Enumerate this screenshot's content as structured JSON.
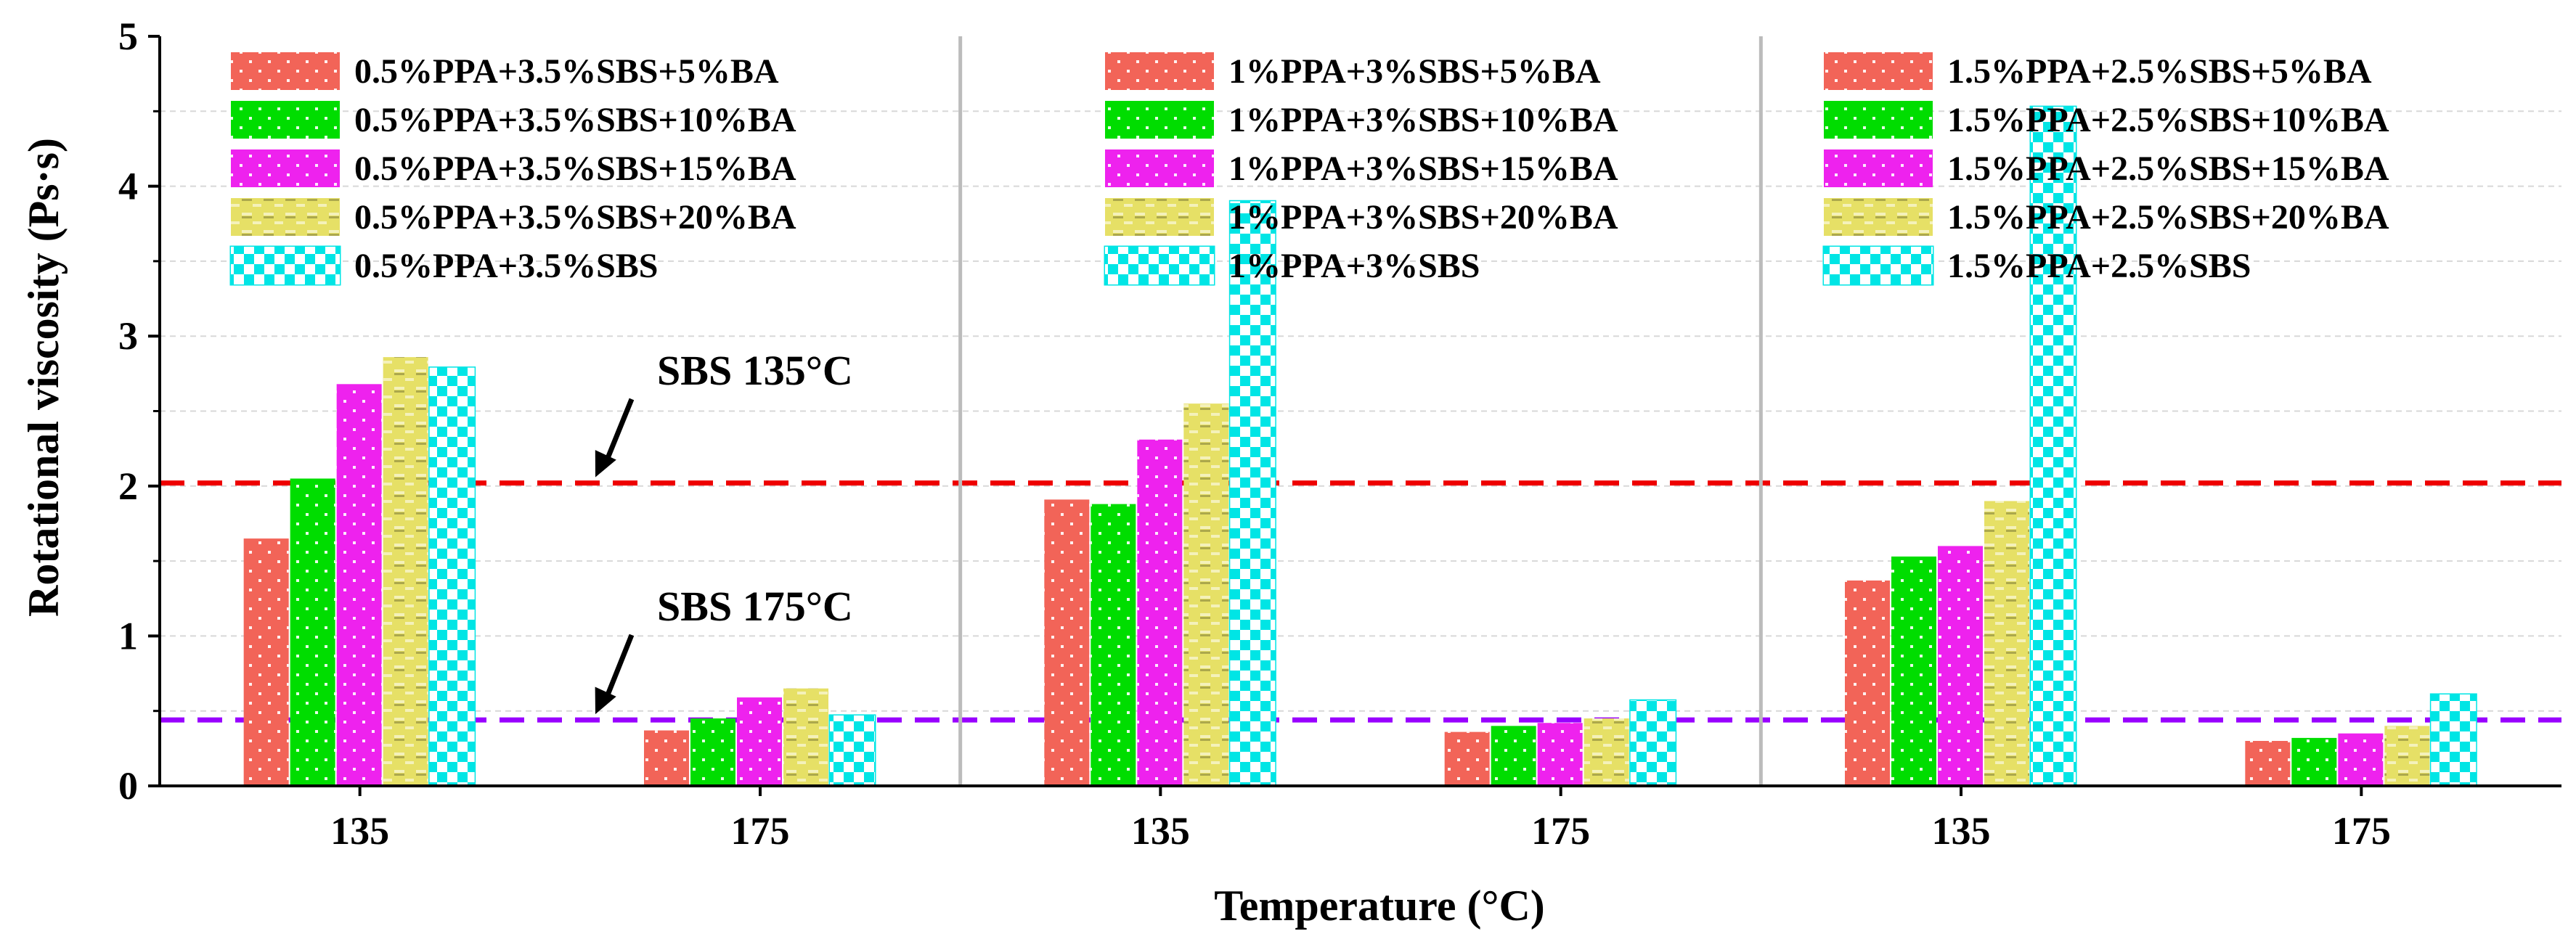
{
  "chart_data": {
    "type": "bar",
    "title": "",
    "xlabel": "Temperature (°C)",
    "ylabel": "Rotational viscosity (Ps·s)",
    "ylim": [
      0,
      5
    ],
    "yticks": [
      "0",
      "1",
      "2",
      "3",
      "4",
      "5"
    ],
    "grid": true,
    "panels": [
      {
        "categories": [
          "135",
          "175"
        ],
        "series": [
          {
            "name": "0.5%PPA+3.5%SBS+5%BA",
            "color": "#f26458",
            "pattern": "dots",
            "values": [
              1.65,
              0.37
            ]
          },
          {
            "name": "0.5%PPA+3.5%SBS+10%BA",
            "color": "#00dd00",
            "pattern": "dots",
            "values": [
              2.05,
              0.45
            ]
          },
          {
            "name": "0.5%PPA+3.5%SBS+15%BA",
            "color": "#ee22ee",
            "pattern": "dots",
            "values": [
              2.68,
              0.59
            ]
          },
          {
            "name": "0.5%PPA+3.5%SBS+20%BA",
            "color": "#e6e066",
            "pattern": "dashes",
            "values": [
              2.86,
              0.65
            ]
          },
          {
            "name": "0.5%PPA+3.5%SBS",
            "color": "#00e5e5",
            "pattern": "checker",
            "values": [
              2.79,
              0.47
            ]
          }
        ]
      },
      {
        "categories": [
          "135",
          "175"
        ],
        "series": [
          {
            "name": "1%PPA+3%SBS+5%BA",
            "color": "#f26458",
            "pattern": "dots",
            "values": [
              1.91,
              0.36
            ]
          },
          {
            "name": "1%PPA+3%SBS+10%BA",
            "color": "#00dd00",
            "pattern": "dots",
            "values": [
              1.88,
              0.4
            ]
          },
          {
            "name": "1%PPA+3%SBS+15%BA",
            "color": "#ee22ee",
            "pattern": "dots",
            "values": [
              2.31,
              0.42
            ]
          },
          {
            "name": "1%PPA+3%SBS+20%BA",
            "color": "#e6e066",
            "pattern": "dashes",
            "values": [
              2.55,
              0.45
            ]
          },
          {
            "name": "1%PPA+3%SBS",
            "color": "#00e5e5",
            "pattern": "checker",
            "values": [
              3.9,
              0.57
            ]
          }
        ]
      },
      {
        "categories": [
          "135",
          "175"
        ],
        "series": [
          {
            "name": "1.5%PPA+2.5%SBS+5%BA",
            "color": "#f26458",
            "pattern": "dots",
            "values": [
              1.37,
              0.3
            ]
          },
          {
            "name": "1.5%PPA+2.5%SBS+10%BA",
            "color": "#00dd00",
            "pattern": "dots",
            "values": [
              1.53,
              0.32
            ]
          },
          {
            "name": "1.5%PPA+2.5%SBS+15%BA",
            "color": "#ee22ee",
            "pattern": "dots",
            "values": [
              1.6,
              0.35
            ]
          },
          {
            "name": "1.5%PPA+2.5%SBS+20%BA",
            "color": "#e6e066",
            "pattern": "dashes",
            "values": [
              1.9,
              0.4
            ]
          },
          {
            "name": "1.5%PPA+2.5%SBS",
            "color": "#00e5e5",
            "pattern": "checker",
            "values": [
              4.53,
              0.61
            ]
          }
        ]
      }
    ],
    "reference_lines": [
      {
        "value": 2.02,
        "color": "#ee0000",
        "label": "SBS 135°C"
      },
      {
        "value": 0.44,
        "color": "#9900ff",
        "label": "SBS 175°C"
      }
    ],
    "legend_position": "top"
  }
}
